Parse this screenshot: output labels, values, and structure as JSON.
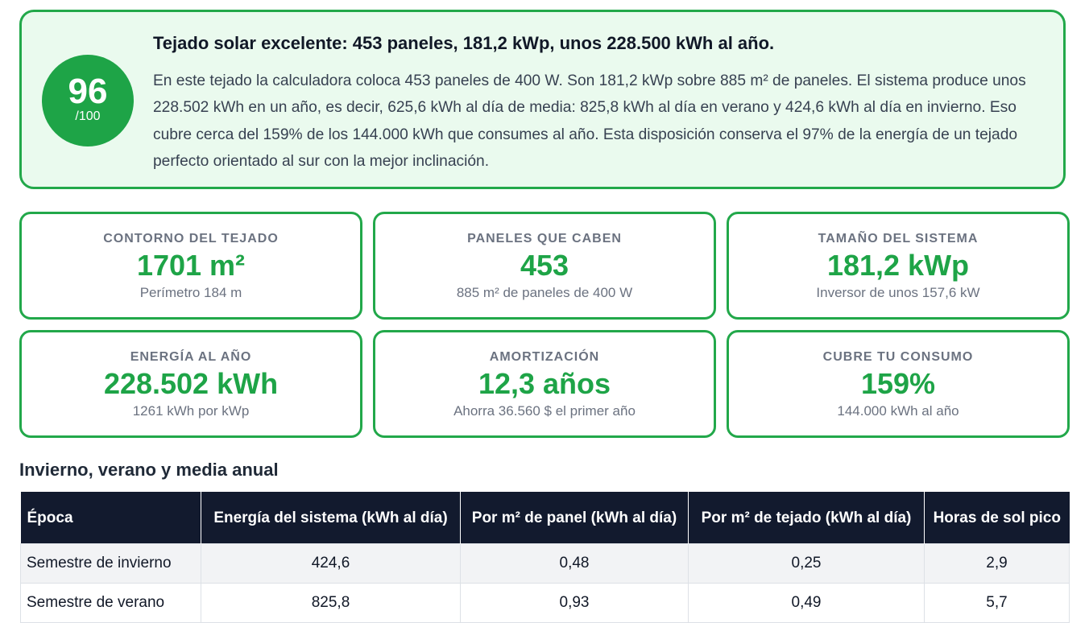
{
  "summary": {
    "score": "96",
    "score_max": "/100",
    "title": "Tejado solar excelente: 453 paneles, 181,2 kWp, unos 228.500 kWh al año.",
    "text": "En este tejado la calculadora coloca 453 paneles de 400 W. Son 181,2 kWp sobre 885 m² de paneles. El sistema produce unos 228.502 kWh en un año, es decir, 625,6 kWh al día de media: 825,8 kWh al día en verano y 424,6 kWh al día en invierno. Eso cubre cerca del 159% de los 144.000 kWh que consumes al año. Esta disposición conserva el 97% de la energía de un tejado perfecto orientado al sur con la mejor inclinación."
  },
  "cards": [
    {
      "label": "CONTORNO DEL TEJADO",
      "value": "1701 m²",
      "sub": "Perímetro 184 m"
    },
    {
      "label": "PANELES QUE CABEN",
      "value": "453",
      "sub": "885 m² de paneles de 400 W"
    },
    {
      "label": "TAMAÑO DEL SISTEMA",
      "value": "181,2 kWp",
      "sub": "Inversor de unos 157,6 kW"
    },
    {
      "label": "ENERGÍA AL AÑO",
      "value": "228.502 kWh",
      "sub": "1261 kWh por kWp"
    },
    {
      "label": "AMORTIZACIÓN",
      "value": "12,3 años",
      "sub": "Ahorra 36.560 $ el primer año"
    },
    {
      "label": "CUBRE TU CONSUMO",
      "value": "159%",
      "sub": "144.000 kWh al año"
    }
  ],
  "table": {
    "title": "Invierno, verano y media anual",
    "headers": [
      "Época",
      "Energía del sistema (kWh al día)",
      "Por m² de panel (kWh al día)",
      "Por m² de tejado (kWh al día)",
      "Horas de sol pico"
    ],
    "rows": [
      [
        "Semestre de invierno",
        "424,6",
        "0,48",
        "0,25",
        "2,9"
      ],
      [
        "Semestre de verano",
        "825,8",
        "0,93",
        "0,49",
        "5,7"
      ]
    ]
  },
  "colors": {
    "accent_green": "#1ea447",
    "summary_bg": "#eafaee",
    "table_header_bg": "#121a2e"
  }
}
